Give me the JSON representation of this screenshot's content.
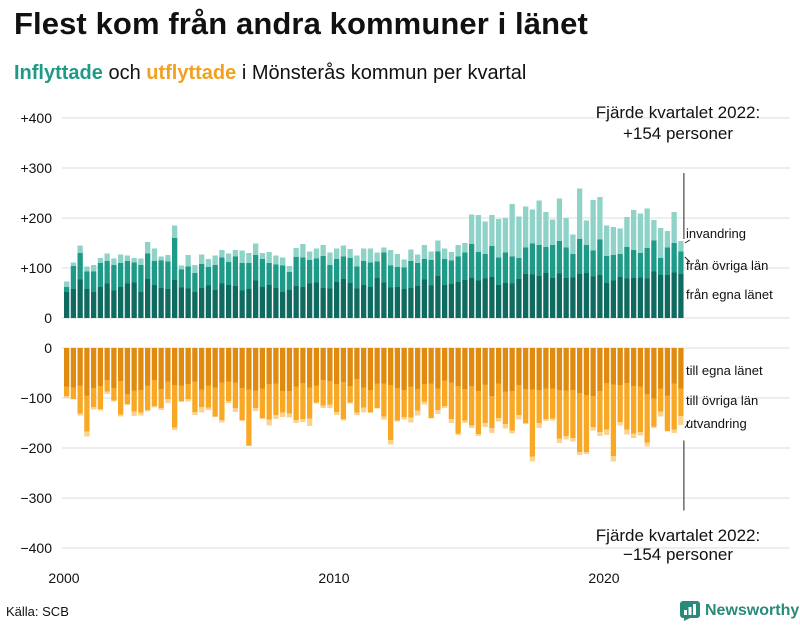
{
  "title": "Flest kom från andra kommuner i länet",
  "subtitle": {
    "part1": "Inflyttade",
    "part2": " och ",
    "part3": "utflyttade",
    "part4": " i Mönsterås kommun per kvartal"
  },
  "source": "Källa: SCB",
  "brand": {
    "name": "Newsworthy",
    "icon": "newsworthy-logo-icon"
  },
  "colors": {
    "in_local": "#0f6b5f",
    "in_other": "#1e9b88",
    "in_immig": "#8fd3c8",
    "out_local": "#e08a10",
    "out_other": "#f8a825",
    "out_emig": "#fbd38e",
    "grid": "#dddddd",
    "axis": "#222222"
  },
  "chart_data": {
    "type": "bar",
    "title": "Flest kom från andra kommuner i länet",
    "stacked": true,
    "x_label": "",
    "y_label": "",
    "x_ticks": [
      "2000",
      "2010",
      "2020"
    ],
    "y_ticks_top": [
      "+400",
      "+300",
      "+200",
      "+100",
      "0"
    ],
    "y_ticks_bottom": [
      "0",
      "−100",
      "−200",
      "−300",
      "−400"
    ],
    "ylim_top": [
      0,
      400
    ],
    "ylim_bottom": [
      -400,
      0
    ],
    "first_quarter": "2000 Q1",
    "last_quarter": "2022 Q4",
    "series_labels": {
      "in_local": "från egna länet",
      "in_other": "från övriga län",
      "in_immig": "invandring",
      "out_local": "till egna länet",
      "out_other": "till övriga län",
      "out_emig": "utvandring"
    },
    "annotation_top": [
      "Fjärde kvartalet 2022:",
      "+154 personer"
    ],
    "annotation_bottom": [
      "Fjärde kvartalet 2022:",
      "−154 personer"
    ],
    "in_local": [
      52,
      58,
      77,
      58,
      52,
      62,
      69,
      55,
      62,
      69,
      71,
      52,
      78,
      66,
      60,
      58,
      76,
      61,
      59,
      52,
      60,
      65,
      56,
      69,
      66,
      64,
      55,
      58,
      75,
      62,
      66,
      60,
      52,
      56,
      64,
      62,
      69,
      71,
      60,
      59,
      72,
      78,
      70,
      59,
      66,
      62,
      80,
      71,
      61,
      62,
      58,
      60,
      64,
      77,
      65,
      84,
      66,
      68,
      72,
      76,
      80,
      75,
      79,
      82,
      66,
      70,
      69,
      78,
      88,
      87,
      84,
      90,
      80,
      89,
      80,
      81,
      88,
      90,
      83,
      86,
      70,
      75,
      82,
      79,
      80,
      81,
      79,
      93,
      86,
      86,
      91,
      88
    ],
    "in_other": [
      10,
      46,
      53,
      35,
      41,
      48,
      45,
      51,
      48,
      45,
      40,
      54,
      51,
      48,
      55,
      55,
      84,
      36,
      44,
      38,
      48,
      37,
      50,
      52,
      46,
      59,
      55,
      52,
      51,
      56,
      44,
      47,
      53,
      36,
      58,
      59,
      47,
      48,
      64,
      47,
      46,
      45,
      50,
      44,
      48,
      49,
      33,
      60,
      44,
      40,
      43,
      54,
      46,
      41,
      51,
      49,
      52,
      47,
      51,
      55,
      68,
      57,
      49,
      62,
      55,
      61,
      54,
      42,
      53,
      62,
      62,
      52,
      66,
      65,
      61,
      47,
      70,
      56,
      52,
      71,
      54,
      51,
      46,
      63,
      56,
      49,
      61,
      62,
      34,
      55,
      59,
      45
    ],
    "in_immig": [
      11,
      7,
      15,
      10,
      13,
      10,
      15,
      13,
      17,
      11,
      9,
      13,
      23,
      25,
      8,
      13,
      25,
      8,
      23,
      16,
      19,
      16,
      19,
      15,
      17,
      13,
      25,
      20,
      23,
      12,
      22,
      18,
      16,
      12,
      18,
      27,
      17,
      20,
      22,
      25,
      21,
      22,
      18,
      22,
      25,
      28,
      18,
      10,
      31,
      26,
      16,
      23,
      17,
      28,
      17,
      22,
      21,
      17,
      23,
      19,
      59,
      74,
      65,
      62,
      77,
      69,
      105,
      83,
      82,
      68,
      89,
      70,
      51,
      85,
      59,
      39,
      101,
      49,
      101,
      85,
      61,
      56,
      51,
      60,
      80,
      79,
      79,
      41,
      60,
      33,
      62,
      21
    ],
    "out_local": [
      -77,
      -79,
      -75,
      -95,
      -80,
      -76,
      -64,
      -80,
      -66,
      -92,
      -85,
      -84,
      -75,
      -64,
      -82,
      -67,
      -74,
      -75,
      -72,
      -67,
      -83,
      -75,
      -79,
      -69,
      -67,
      -69,
      -80,
      -83,
      -85,
      -81,
      -72,
      -71,
      -86,
      -86,
      -77,
      -70,
      -79,
      -75,
      -64,
      -66,
      -72,
      -68,
      -76,
      -62,
      -79,
      -84,
      -71,
      -71,
      -74,
      -80,
      -84,
      -77,
      -82,
      -72,
      -71,
      -81,
      -65,
      -69,
      -76,
      -82,
      -76,
      -86,
      -73,
      -96,
      -71,
      -87,
      -86,
      -74,
      -82,
      -83,
      -84,
      -81,
      -81,
      -84,
      -85,
      -84,
      -90,
      -94,
      -96,
      -86,
      -70,
      -73,
      -74,
      -70,
      -76,
      -77,
      -92,
      -101,
      -81,
      -95,
      -71,
      -81
    ],
    "out_other": [
      -19,
      -23,
      -56,
      -72,
      -38,
      -46,
      -23,
      -25,
      -67,
      -20,
      -42,
      -45,
      -49,
      -52,
      -38,
      -35,
      -85,
      -31,
      -30,
      -61,
      -35,
      -44,
      -58,
      -75,
      -39,
      -51,
      -64,
      -112,
      -35,
      -59,
      -71,
      -63,
      -43,
      -45,
      -67,
      -72,
      -62,
      -34,
      -51,
      -47,
      -56,
      -74,
      -33,
      -67,
      -40,
      -44,
      -49,
      -66,
      -110,
      -65,
      -54,
      -62,
      -43,
      -35,
      -69,
      -43,
      -51,
      -73,
      -95,
      -63,
      -79,
      -86,
      -77,
      -64,
      -69,
      -65,
      -79,
      -60,
      -68,
      -134,
      -66,
      -61,
      -60,
      -97,
      -91,
      -96,
      -118,
      -114,
      -62,
      -82,
      -93,
      -143,
      -74,
      -93,
      -95,
      -91,
      -97,
      -56,
      -46,
      -71,
      -92,
      -55
    ],
    "out_emig": [
      -4,
      -1,
      -4,
      -10,
      -5,
      -3,
      -5,
      -2,
      -4,
      -2,
      -9,
      -6,
      -3,
      -3,
      -4,
      -8,
      -5,
      -2,
      -5,
      -6,
      -11,
      -5,
      -1,
      -5,
      -4,
      -8,
      -2,
      -1,
      -6,
      -2,
      -12,
      -8,
      -9,
      -8,
      -6,
      -6,
      -15,
      -2,
      -5,
      -7,
      -6,
      -3,
      -2,
      -5,
      -10,
      -2,
      -1,
      -6,
      -9,
      -2,
      -5,
      -10,
      -10,
      -6,
      -1,
      -8,
      -4,
      -8,
      -3,
      -5,
      -5,
      -4,
      -8,
      -10,
      -7,
      -9,
      -6,
      -9,
      -2,
      -10,
      -10,
      -4,
      -4,
      -9,
      -7,
      -7,
      -6,
      -4,
      -7,
      -8,
      -11,
      -11,
      -7,
      -10,
      -9,
      -7,
      -8,
      -3,
      -10,
      -1,
      -7,
      -18
    ]
  }
}
